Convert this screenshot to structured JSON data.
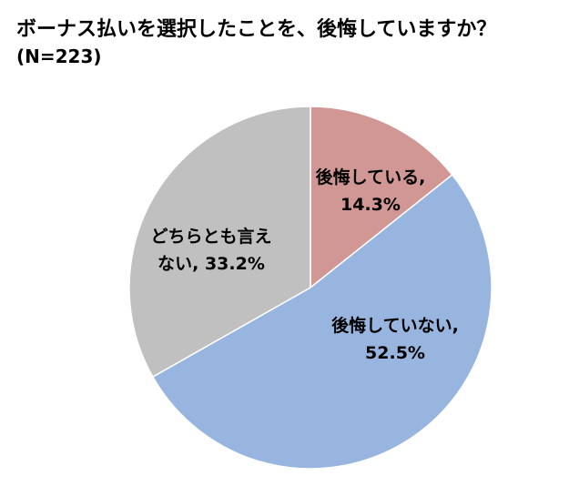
{
  "chart_data": {
    "type": "pie",
    "title": "ボーナス払いを選択したことを、後悔していますか？",
    "subtitle": "(N=223)",
    "slices": [
      {
        "label_lines": [
          "後悔している,",
          "14.3%"
        ],
        "category": "後悔している",
        "value": 14.3,
        "color": "#d09794"
      },
      {
        "label_lines": [
          "後悔していない,",
          "52.5%"
        ],
        "category": "後悔していない",
        "value": 52.5,
        "color": "#97b5de"
      },
      {
        "label_lines": [
          "どちらとも言え",
          "ない, 33.2%"
        ],
        "category": "どちらとも言えない",
        "value": 33.2,
        "color": "#c0c0c0"
      }
    ]
  }
}
